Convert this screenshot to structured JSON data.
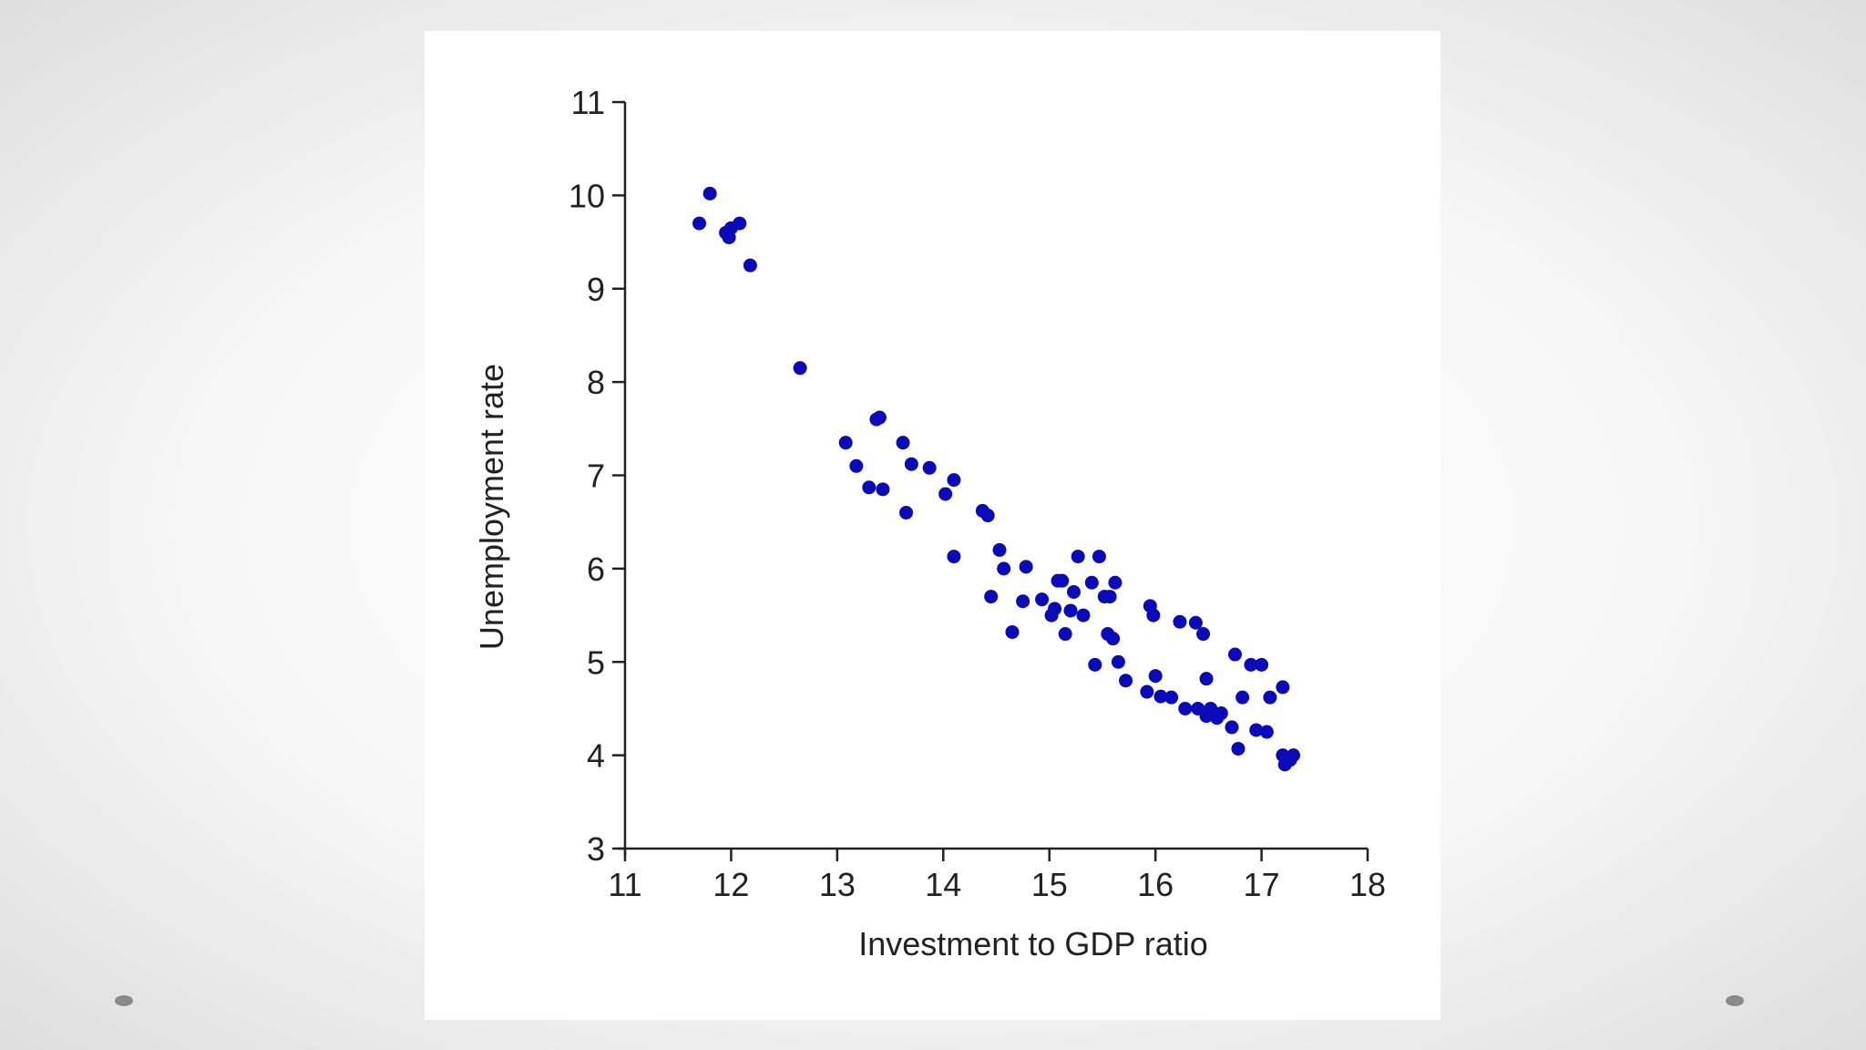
{
  "colors": {
    "point": "#0a0ab8",
    "axis": "#222222"
  },
  "chart_data": {
    "type": "scatter",
    "title": "",
    "xlabel": "Investment to GDP ratio",
    "ylabel": "Unemployment rate",
    "xlim": [
      11,
      18
    ],
    "ylim": [
      3,
      11
    ],
    "xticks": [
      "11",
      "12",
      "13",
      "14",
      "15",
      "16",
      "17",
      "18"
    ],
    "yticks": [
      "3",
      "4",
      "5",
      "6",
      "7",
      "8",
      "9",
      "10",
      "11"
    ],
    "grid": false,
    "points": [
      [
        11.7,
        9.7
      ],
      [
        11.8,
        10.02
      ],
      [
        11.95,
        9.6
      ],
      [
        11.98,
        9.55
      ],
      [
        12.0,
        9.65
      ],
      [
        12.08,
        9.7
      ],
      [
        12.18,
        9.25
      ],
      [
        12.65,
        8.15
      ],
      [
        13.08,
        7.35
      ],
      [
        13.18,
        7.1
      ],
      [
        13.3,
        6.87
      ],
      [
        13.37,
        7.6
      ],
      [
        13.4,
        7.62
      ],
      [
        13.43,
        6.85
      ],
      [
        13.62,
        7.35
      ],
      [
        13.65,
        6.6
      ],
      [
        13.7,
        7.12
      ],
      [
        13.87,
        7.08
      ],
      [
        14.02,
        6.8
      ],
      [
        14.1,
        6.95
      ],
      [
        14.1,
        6.13
      ],
      [
        14.37,
        6.62
      ],
      [
        14.42,
        6.57
      ],
      [
        14.45,
        5.7
      ],
      [
        14.53,
        6.2
      ],
      [
        14.57,
        6.0
      ],
      [
        14.65,
        5.32
      ],
      [
        14.75,
        5.65
      ],
      [
        14.78,
        6.02
      ],
      [
        14.93,
        5.67
      ],
      [
        15.02,
        5.5
      ],
      [
        15.05,
        5.57
      ],
      [
        15.08,
        5.87
      ],
      [
        15.12,
        5.87
      ],
      [
        15.15,
        5.3
      ],
      [
        15.2,
        5.55
      ],
      [
        15.23,
        5.75
      ],
      [
        15.27,
        6.13
      ],
      [
        15.32,
        5.5
      ],
      [
        15.4,
        5.85
      ],
      [
        15.43,
        4.97
      ],
      [
        15.47,
        6.13
      ],
      [
        15.52,
        5.7
      ],
      [
        15.55,
        5.3
      ],
      [
        15.57,
        5.7
      ],
      [
        15.6,
        5.25
      ],
      [
        15.62,
        5.85
      ],
      [
        15.65,
        5.0
      ],
      [
        15.72,
        4.8
      ],
      [
        15.92,
        4.68
      ],
      [
        15.95,
        5.6
      ],
      [
        15.98,
        5.5
      ],
      [
        16.0,
        4.85
      ],
      [
        16.05,
        4.63
      ],
      [
        16.15,
        4.62
      ],
      [
        16.23,
        5.43
      ],
      [
        16.28,
        4.5
      ],
      [
        16.38,
        5.42
      ],
      [
        16.4,
        4.5
      ],
      [
        16.45,
        5.3
      ],
      [
        16.48,
        4.82
      ],
      [
        16.48,
        4.42
      ],
      [
        16.52,
        4.5
      ],
      [
        16.58,
        4.4
      ],
      [
        16.62,
        4.45
      ],
      [
        16.72,
        4.3
      ],
      [
        16.75,
        5.08
      ],
      [
        16.78,
        4.07
      ],
      [
        16.82,
        4.62
      ],
      [
        16.9,
        4.97
      ],
      [
        16.95,
        4.27
      ],
      [
        17.0,
        4.97
      ],
      [
        17.05,
        4.25
      ],
      [
        17.08,
        4.62
      ],
      [
        17.2,
        4.73
      ],
      [
        17.2,
        4.0
      ],
      [
        17.22,
        3.9
      ],
      [
        17.27,
        3.95
      ],
      [
        17.3,
        4.0
      ]
    ]
  }
}
